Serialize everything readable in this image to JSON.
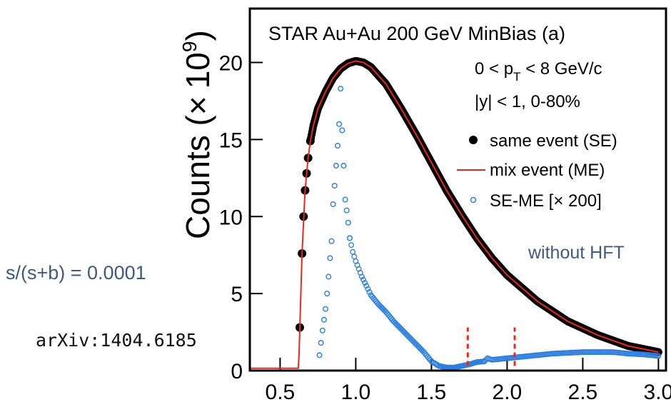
{
  "chart_data": {
    "type": "scatter",
    "title": "STAR Au+Au 200 GeV MinBias  (a)",
    "ylabel": "Counts (× 10⁹)",
    "ylabel_main": "Counts (×",
    "ylabel_base": "10",
    "ylabel_exp": "9",
    "ylabel_close": ")",
    "xlabel": "",
    "xlim": [
      0.3,
      3.05
    ],
    "ylim": [
      0,
      23.5
    ],
    "xticks": [
      "0.5",
      "1.0",
      "1.5",
      "2.0",
      "2.5",
      "3.0"
    ],
    "xtick_values": [
      0.5,
      1.0,
      1.5,
      2.0,
      2.5,
      3.0
    ],
    "yticks": [
      "0",
      "5",
      "10",
      "15",
      "20"
    ],
    "ytick_values": [
      0,
      5,
      10,
      15,
      20
    ],
    "annotations": {
      "pt_prefix": "0 < p",
      "pt_sub": "T",
      "pt_suffix": " < 8 GeV/c",
      "rapidity": "|y| < 1,  0-80%",
      "hft": "without HFT"
    },
    "legend": {
      "placement": "top-right",
      "entries": [
        {
          "label": "same event (SE)",
          "marker": "filled-circle",
          "color": "#000000"
        },
        {
          "label": "mix event (ME)",
          "marker": "line",
          "color": "#e8291c"
        },
        {
          "label": "SE-ME [× 200]",
          "marker": "open-circle",
          "color": "#2a7de1"
        }
      ]
    },
    "series": [
      {
        "name": "same event (SE)",
        "x": [
          0.63,
          0.645,
          0.655,
          0.665,
          0.675,
          0.685,
          0.7,
          0.72,
          0.75,
          0.8,
          0.85,
          0.9,
          0.95,
          1.0,
          1.05,
          1.1,
          1.2,
          1.3,
          1.4,
          1.5,
          1.6,
          1.7,
          1.8,
          1.9,
          2.0,
          2.2,
          2.4,
          2.6,
          2.8,
          3.0
        ],
        "y": [
          2.8,
          7.6,
          10.0,
          11.7,
          12.8,
          13.8,
          14.9,
          15.9,
          17.0,
          18.1,
          19.0,
          19.6,
          19.95,
          20.1,
          20.0,
          19.7,
          18.6,
          17.0,
          15.3,
          13.5,
          11.7,
          10.1,
          8.6,
          7.3,
          6.2,
          4.5,
          3.2,
          2.3,
          1.6,
          1.2
        ]
      },
      {
        "name": "mix event (ME)",
        "x": [
          0.3,
          0.62,
          0.625,
          0.645,
          0.665,
          0.685,
          0.7,
          0.72,
          0.75,
          0.8,
          0.85,
          0.9,
          0.95,
          1.0,
          1.05,
          1.1,
          1.2,
          1.3,
          1.4,
          1.5,
          1.6,
          1.7,
          1.8,
          1.9,
          2.0,
          2.2,
          2.4,
          2.6,
          2.8,
          3.0
        ],
        "y": [
          0.15,
          0.15,
          1.0,
          7.6,
          11.7,
          13.8,
          14.9,
          15.9,
          17.0,
          18.1,
          19.0,
          19.6,
          19.95,
          20.1,
          20.0,
          19.7,
          18.6,
          17.0,
          15.3,
          13.5,
          11.7,
          10.1,
          8.6,
          7.3,
          6.2,
          4.5,
          3.2,
          2.3,
          1.6,
          1.2
        ]
      },
      {
        "name": "SE-ME [× 200]",
        "x": [
          0.76,
          0.77,
          0.78,
          0.79,
          0.8,
          0.81,
          0.82,
          0.83,
          0.84,
          0.85,
          0.86,
          0.87,
          0.88,
          0.89,
          0.9,
          0.91,
          0.92,
          0.93,
          0.94,
          0.95,
          0.96,
          0.98,
          1.0,
          1.02,
          1.04,
          1.06,
          1.08,
          1.1,
          1.15,
          1.2,
          1.25,
          1.3,
          1.35,
          1.4,
          1.45,
          1.5,
          1.55,
          1.6,
          1.65,
          1.7,
          1.75,
          1.8,
          1.85,
          1.87,
          1.9,
          2.0,
          2.1,
          2.2,
          2.3,
          2.4,
          2.5,
          2.6,
          2.7,
          2.8,
          2.9,
          3.0
        ],
        "y": [
          1.0,
          1.8,
          2.6,
          3.3,
          4.0,
          5.0,
          6.1,
          7.3,
          8.4,
          10.8,
          12.0,
          13.3,
          14.6,
          16.0,
          18.3,
          15.6,
          13.3,
          11.1,
          10.4,
          9.6,
          8.6,
          7.7,
          7.1,
          6.6,
          6.1,
          5.7,
          5.3,
          4.9,
          4.3,
          3.8,
          3.2,
          2.7,
          2.2,
          1.7,
          1.2,
          0.6,
          0.3,
          0.2,
          0.2,
          0.3,
          0.4,
          0.55,
          0.6,
          0.8,
          0.7,
          0.8,
          0.9,
          1.0,
          1.1,
          1.15,
          1.2,
          1.2,
          1.2,
          1.1,
          1.05,
          0.95
        ]
      }
    ],
    "markers": {
      "x": [
        1.74,
        2.05
      ],
      "y_range": [
        0.3,
        2.8
      ],
      "color": "#e8291c",
      "style": "dashed"
    }
  },
  "side_notes": {
    "signal_ratio": "s/(s+b) = 0.0001",
    "reference": "arXiv:1404.6185"
  }
}
